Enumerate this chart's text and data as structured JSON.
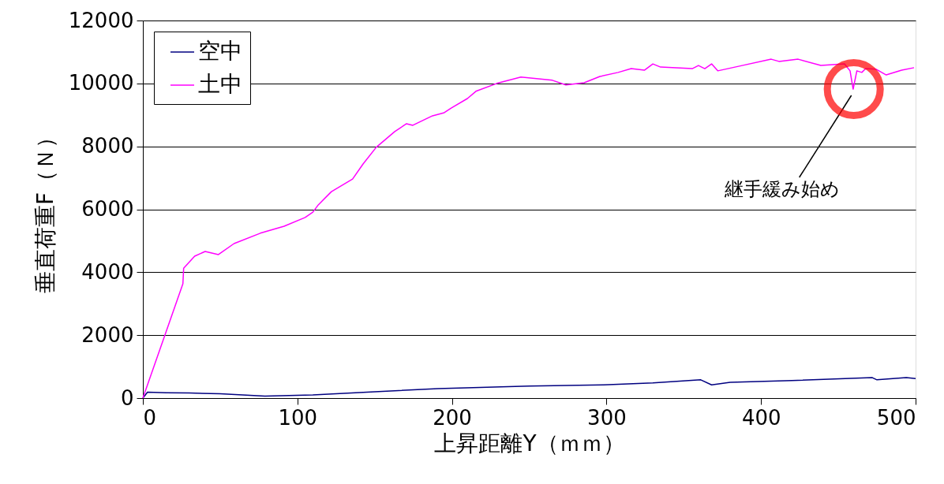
{
  "chart_data": {
    "type": "line",
    "xlabel": "上昇距離Y（ｍｍ）",
    "ylabel": "垂直荷重F（Ｎ）",
    "xlim": [
      0,
      500
    ],
    "xticks": [
      0,
      100,
      200,
      300,
      400,
      500
    ],
    "ylim": [
      0,
      12000
    ],
    "yticks": [
      0,
      2000,
      4000,
      6000,
      8000,
      10000,
      12000
    ],
    "grid": "y",
    "legend": "top left",
    "marker": "none",
    "line_style": "solid",
    "annotations": [
      {
        "text": "継手緩み始め",
        "x": 460,
        "y": 9820
      }
    ],
    "series": [
      {
        "name": "空中",
        "color": "#000080",
        "x": [
          0,
          3,
          15,
          30,
          50,
          79,
          110,
          150,
          191,
          250,
          298,
          330,
          361,
          368,
          380,
          420,
          472,
          475,
          494,
          500
        ],
        "values": [
          0,
          190,
          170,
          160,
          140,
          60,
          100,
          200,
          300,
          380,
          420,
          480,
          580,
          420,
          500,
          560,
          650,
          580,
          650,
          620
        ]
      },
      {
        "name": "土中",
        "color": "#ff00ff",
        "x": [
          0,
          25.9,
          26.4,
          33.5,
          40.3,
          48.9,
          59,
          76,
          91.4,
          105,
          110,
          113.5,
          122,
          135.7,
          142.5,
          151,
          163,
          170.6,
          174.7,
          187.4,
          195,
          199.7,
          210,
          215.5,
          229,
          244.6,
          265,
          273.7,
          285.5,
          295.7,
          307.5,
          316,
          324.5,
          330,
          335,
          355.5,
          359.5,
          363.6,
          368,
          372,
          386,
          406.6,
          411.6,
          424,
          438.7,
          454,
          457.6,
          459.6,
          462,
          465.2,
          467.7,
          474.5,
          481,
          491,
          499
        ],
        "values": [
          0,
          3630,
          4130,
          4510,
          4660,
          4560,
          4910,
          5240,
          5460,
          5740,
          5910,
          6140,
          6560,
          6960,
          7440,
          7970,
          8470,
          8720,
          8670,
          8970,
          9070,
          9220,
          9520,
          9750,
          10000,
          10200,
          10100,
          9950,
          10020,
          10220,
          10350,
          10470,
          10420,
          10620,
          10520,
          10470,
          10570,
          10470,
          10620,
          10400,
          10550,
          10770,
          10700,
          10770,
          10570,
          10620,
          10400,
          9820,
          10400,
          10350,
          10470,
          10450,
          10270,
          10420,
          10500
        ]
      }
    ]
  }
}
